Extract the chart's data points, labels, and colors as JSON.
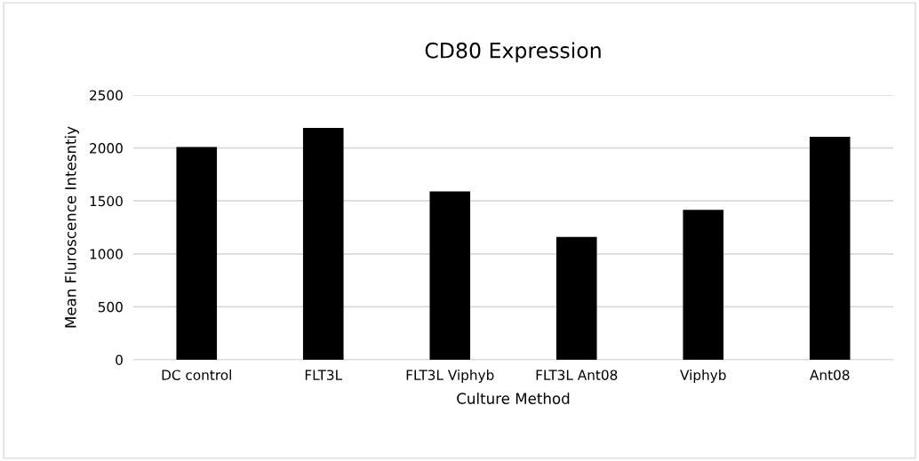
{
  "chart_data": {
    "type": "bar",
    "title": "CD80 Expression",
    "xlabel": "Culture Method",
    "ylabel": "Mean Fluroscence Intesntiy",
    "categories": [
      "DC control",
      "FLT3L",
      "FLT3L Viphyb",
      "FLT3L Ant08",
      "Viphyb",
      "Ant08"
    ],
    "values": [
      2010,
      2190,
      1590,
      1160,
      1415,
      2105
    ],
    "color": "#000000",
    "ylim": [
      0,
      2500
    ],
    "yticks": [
      0,
      500,
      1000,
      1500,
      2000,
      2500
    ],
    "grid": "y",
    "legend": false
  }
}
